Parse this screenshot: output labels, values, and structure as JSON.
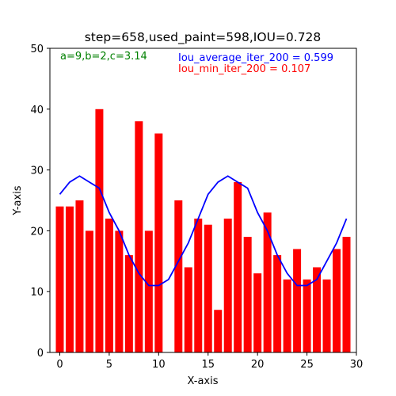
{
  "chart_data": {
    "type": "bar",
    "title": "step=658,used_paint=598,IOU=0.728",
    "xlabel": "X-axis",
    "ylabel": "Y-axis",
    "xlim": [
      -1,
      30
    ],
    "ylim": [
      0,
      50
    ],
    "xticks": [
      0,
      5,
      10,
      15,
      20,
      25,
      30
    ],
    "yticks": [
      0,
      10,
      20,
      30,
      40,
      50
    ],
    "grid": false,
    "bar_color": "#ff0000",
    "line_color": "#0000ff",
    "bars": {
      "x": [
        0,
        1,
        2,
        3,
        4,
        5,
        6,
        7,
        8,
        9,
        10,
        11,
        12,
        13,
        14,
        15,
        16,
        17,
        18,
        19,
        20,
        21,
        22,
        23,
        24,
        25,
        26,
        27,
        28,
        29
      ],
      "values": [
        24,
        24,
        25,
        20,
        40,
        22,
        20,
        16,
        38,
        20,
        36,
        0,
        25,
        14,
        22,
        21,
        7,
        22,
        28,
        19,
        13,
        23,
        16,
        12,
        17,
        12,
        14,
        12,
        17,
        19
      ]
    },
    "line": {
      "x": [
        0,
        1,
        2,
        3,
        4,
        5,
        6,
        7,
        8,
        9,
        10,
        11,
        12,
        13,
        14,
        15,
        16,
        17,
        18,
        19,
        20,
        21,
        22,
        23,
        24,
        25,
        26,
        27,
        28,
        29
      ],
      "values": [
        26,
        28,
        29,
        28,
        27,
        23,
        20,
        16,
        13,
        11,
        11,
        12,
        15,
        18,
        22,
        26,
        28,
        29,
        28,
        27,
        23,
        20,
        16,
        13,
        11,
        11,
        12,
        15,
        18,
        22
      ]
    },
    "annotations": [
      {
        "text": "a=9,b=2,c=3.14",
        "color": "#008000"
      },
      {
        "text": "Iou_average_iter_200 = 0.599",
        "color": "#0000ff"
      },
      {
        "text": "Iou_min_iter_200 = 0.107",
        "color": "#ff0000"
      }
    ]
  }
}
